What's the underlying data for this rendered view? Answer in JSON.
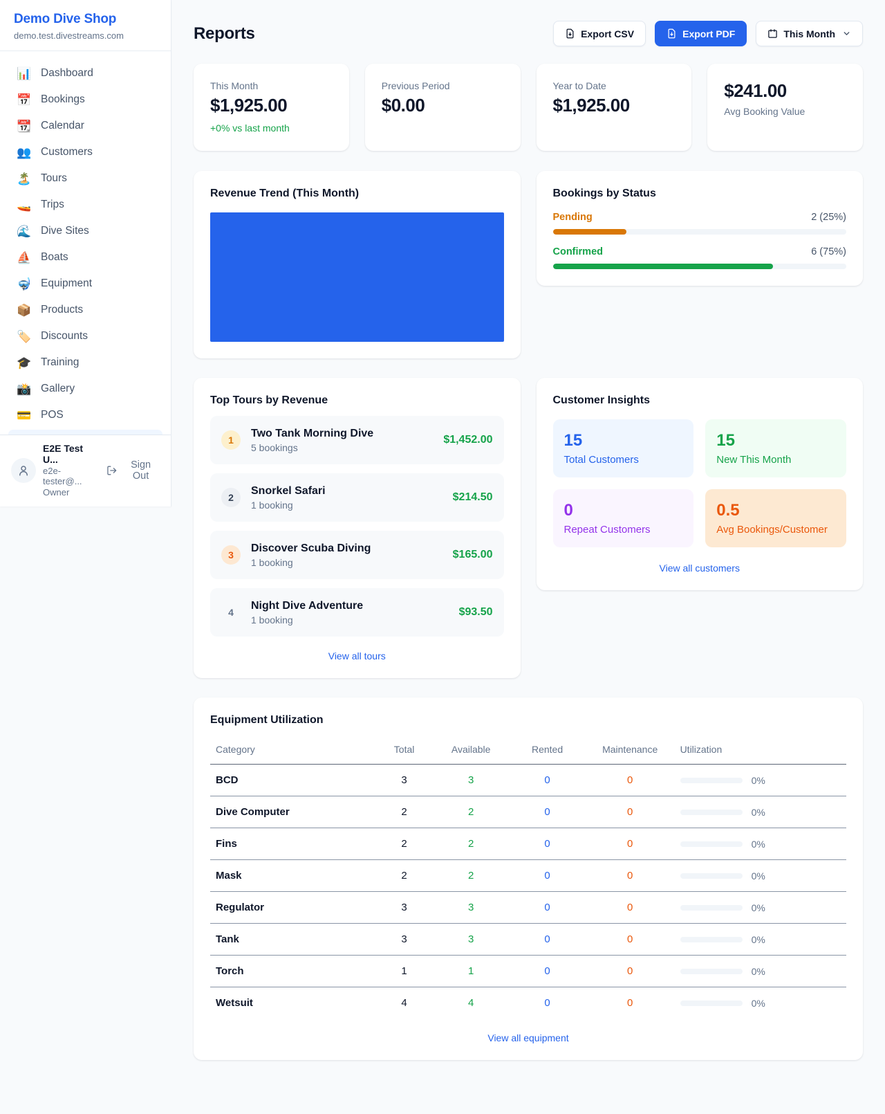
{
  "brand": {
    "name": "Demo Dive Shop",
    "domain": "demo.test.divestreams.com"
  },
  "sidebar": {
    "items": [
      {
        "icon": "📊",
        "label": "Dashboard"
      },
      {
        "icon": "📅",
        "label": "Bookings"
      },
      {
        "icon": "📆",
        "label": "Calendar"
      },
      {
        "icon": "👥",
        "label": "Customers"
      },
      {
        "icon": "🏝️",
        "label": "Tours"
      },
      {
        "icon": "🚤",
        "label": "Trips"
      },
      {
        "icon": "🌊",
        "label": "Dive Sites"
      },
      {
        "icon": "⛵",
        "label": "Boats"
      },
      {
        "icon": "🤿",
        "label": "Equipment"
      },
      {
        "icon": "📦",
        "label": "Products"
      },
      {
        "icon": "🏷️",
        "label": "Discounts"
      },
      {
        "icon": "🎓",
        "label": "Training"
      },
      {
        "icon": "📸",
        "label": "Gallery"
      },
      {
        "icon": "💳",
        "label": "POS"
      }
    ],
    "user": {
      "name": "E2E Test U...",
      "email": "e2e-tester@...",
      "role": "Owner",
      "signout_label": "Sign Out"
    }
  },
  "header": {
    "title": "Reports",
    "export_csv_label": "Export CSV",
    "export_pdf_label": "Export PDF",
    "period_label": "This Month"
  },
  "stats": {
    "cards": [
      {
        "label": "This Month",
        "value": "$1,925.00",
        "delta": "+0% vs last month"
      },
      {
        "label": "Previous Period",
        "value": "$0.00"
      },
      {
        "label": "Year to Date",
        "value": "$1,925.00"
      },
      {
        "label": "Avg Booking Value",
        "value": "$241.00"
      }
    ]
  },
  "revenue_trend": {
    "title": "Revenue Trend (This Month)",
    "chart_data": {
      "type": "bar",
      "categories": [
        "This Month"
      ],
      "values": [
        1925
      ],
      "bar_color": "#2563eb",
      "note": "single full-width bar, no axes shown"
    }
  },
  "bookings_by_status": {
    "title": "Bookings by Status",
    "rows": [
      {
        "label": "Pending",
        "value_text": "2 (25%)",
        "count": 2,
        "percent": 25,
        "color": "#d97706"
      },
      {
        "label": "Confirmed",
        "value_text": "6 (75%)",
        "count": 6,
        "percent": 75,
        "color": "#16a34a"
      }
    ]
  },
  "top_tours": {
    "title": "Top Tours by Revenue",
    "items": [
      {
        "rank": "1",
        "name": "Two Tank Morning Dive",
        "bookings": "5 bookings",
        "revenue": "$1,452.00"
      },
      {
        "rank": "2",
        "name": "Snorkel Safari",
        "bookings": "1 booking",
        "revenue": "$214.50"
      },
      {
        "rank": "3",
        "name": "Discover Scuba Diving",
        "bookings": "1 booking",
        "revenue": "$165.00"
      },
      {
        "rank": "4",
        "name": "Night Dive Adventure",
        "bookings": "1 booking",
        "revenue": "$93.50"
      }
    ],
    "view_all_label": "View all tours"
  },
  "customer_insights": {
    "title": "Customer Insights",
    "tiles": [
      {
        "value": "15",
        "label": "Total Customers",
        "color": "#2563eb"
      },
      {
        "value": "15",
        "label": "New This Month",
        "color": "#16a34a"
      },
      {
        "value": "0",
        "label": "Repeat Customers",
        "color": "#9333ea"
      },
      {
        "value": "0.5",
        "label": "Avg Bookings/Customer",
        "color": "#ea580c"
      }
    ],
    "view_all_label": "View all customers"
  },
  "equipment": {
    "title": "Equipment Utilization",
    "columns": [
      "Category",
      "Total",
      "Available",
      "Rented",
      "Maintenance",
      "Utilization"
    ],
    "rows": [
      {
        "category": "BCD",
        "total": "3",
        "available": "3",
        "rented": "0",
        "maintenance": "0",
        "utilization_text": "0%",
        "utilization_percent": 0
      },
      {
        "category": "Dive Computer",
        "total": "2",
        "available": "2",
        "rented": "0",
        "maintenance": "0",
        "utilization_text": "0%",
        "utilization_percent": 0
      },
      {
        "category": "Fins",
        "total": "2",
        "available": "2",
        "rented": "0",
        "maintenance": "0",
        "utilization_text": "0%",
        "utilization_percent": 0
      },
      {
        "category": "Mask",
        "total": "2",
        "available": "2",
        "rented": "0",
        "maintenance": "0",
        "utilization_text": "0%",
        "utilization_percent": 0
      },
      {
        "category": "Regulator",
        "total": "3",
        "available": "3",
        "rented": "0",
        "maintenance": "0",
        "utilization_text": "0%",
        "utilization_percent": 0
      },
      {
        "category": "Tank",
        "total": "3",
        "available": "3",
        "rented": "0",
        "maintenance": "0",
        "utilization_text": "0%",
        "utilization_percent": 0
      },
      {
        "category": "Torch",
        "total": "1",
        "available": "1",
        "rented": "0",
        "maintenance": "0",
        "utilization_text": "0%",
        "utilization_percent": 0
      },
      {
        "category": "Wetsuit",
        "total": "4",
        "available": "4",
        "rented": "0",
        "maintenance": "0",
        "utilization_text": "0%",
        "utilization_percent": 0
      }
    ],
    "view_all_label": "View all equipment"
  },
  "colors": {
    "accent_blue": "#2563eb",
    "green": "#16a34a",
    "amber": "#d97706",
    "orange": "#ea580c",
    "purple": "#9333ea",
    "text_dark": "#0f172a",
    "text_muted": "#64748b",
    "page_bg": "#f8fafc"
  }
}
